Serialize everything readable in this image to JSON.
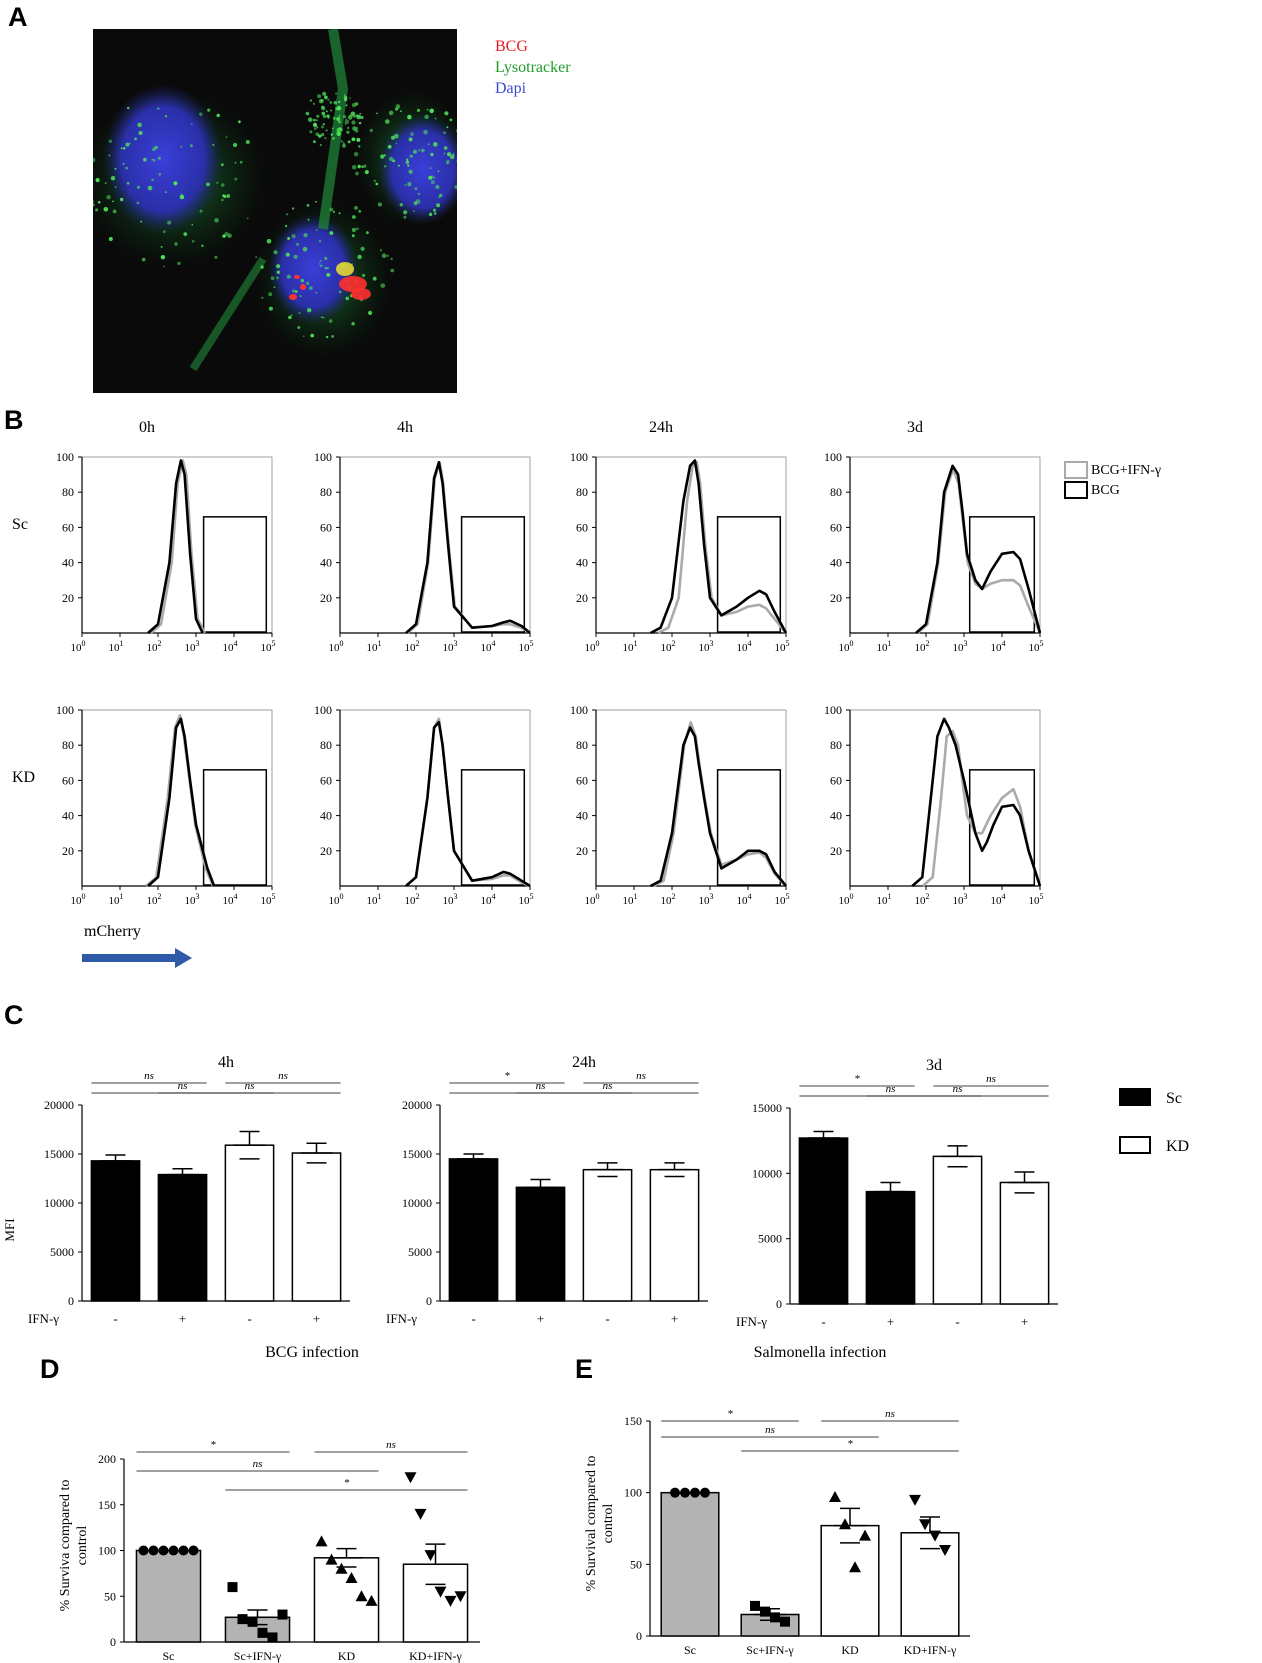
{
  "panels": {
    "A": {
      "letter": "A",
      "legend": [
        {
          "label": "BCG",
          "color": "#e8191f"
        },
        {
          "label": "Lysotracker",
          "color": "#1f9b2a"
        },
        {
          "label": "Dapi",
          "color": "#3b4bd0"
        }
      ]
    },
    "B": {
      "letter": "B",
      "timepoints": [
        "0h",
        "4h",
        "24h",
        "3d"
      ],
      "rows": [
        "Sc",
        "KD"
      ],
      "legend": [
        {
          "label": "BCG+IFN-γ",
          "color": "#aaaaaa"
        },
        {
          "label": "BCG",
          "color": "#000000"
        }
      ],
      "y_ticks": [
        "100",
        "80",
        "60",
        "40",
        "20"
      ],
      "x_ticks": [
        {
          "base": "10",
          "exp": "0"
        },
        {
          "base": "10",
          "exp": "1"
        },
        {
          "base": "10",
          "exp": "2"
        },
        {
          "base": "10",
          "exp": "3"
        },
        {
          "base": "10",
          "exp": "4"
        },
        {
          "base": "10",
          "exp": "5"
        }
      ],
      "x_label": "mCherry",
      "arrow_color": "#2e5aa8"
    },
    "C": {
      "letter": "C",
      "ylabel": "MFI",
      "x_axis_label": "IFN-γ",
      "ifn_labels": [
        "-",
        "+",
        "-",
        "+"
      ],
      "legend": [
        {
          "label": "Sc",
          "fill": "#000000"
        },
        {
          "label": "KD",
          "fill": "#ffffff"
        }
      ]
    },
    "D": {
      "letter": "D"
    },
    "E": {
      "letter": "E"
    }
  },
  "chart_data": [
    {
      "panel": "B",
      "type": "line",
      "subplot": "Sc 0h",
      "x_scale": "log",
      "xlim": [
        1,
        100000
      ],
      "ylim": [
        0,
        100
      ],
      "series": [
        {
          "name": "BCG",
          "x": [
            100,
            200,
            300,
            400,
            500,
            700,
            1000,
            1500
          ],
          "y": [
            5,
            40,
            85,
            98,
            90,
            45,
            8,
            0
          ]
        },
        {
          "name": "BCG+IFN-γ",
          "x": [
            120,
            230,
            330,
            450,
            560,
            760,
            1100,
            1700
          ],
          "y": [
            5,
            40,
            85,
            98,
            90,
            45,
            8,
            0
          ]
        }
      ]
    },
    {
      "panel": "B",
      "type": "line",
      "subplot": "Sc 4h",
      "x_scale": "log",
      "xlim": [
        1,
        100000
      ],
      "ylim": [
        0,
        100
      ],
      "series": [
        {
          "name": "BCG",
          "x": [
            100,
            200,
            300,
            400,
            500,
            700,
            1000,
            3000,
            10000,
            20000,
            30000,
            60000,
            100000
          ],
          "y": [
            5,
            40,
            88,
            97,
            85,
            50,
            15,
            3,
            4,
            6,
            7,
            4,
            0
          ]
        },
        {
          "name": "BCG+IFN-γ",
          "x": [
            110,
            210,
            310,
            420,
            520,
            720,
            1050,
            3000,
            10000,
            20000,
            30000,
            60000,
            100000
          ],
          "y": [
            5,
            40,
            88,
            97,
            85,
            50,
            15,
            3,
            4,
            5,
            5,
            3,
            0
          ]
        }
      ]
    },
    {
      "panel": "B",
      "type": "line",
      "subplot": "Sc 24h",
      "x_scale": "log",
      "xlim": [
        1,
        100000
      ],
      "ylim": [
        0,
        100
      ],
      "series": [
        {
          "name": "BCG",
          "x": [
            50,
            100,
            200,
            300,
            400,
            500,
            700,
            1000,
            2000,
            5000,
            10000,
            20000,
            30000,
            50000,
            100000
          ],
          "y": [
            3,
            20,
            75,
            95,
            98,
            85,
            50,
            20,
            10,
            15,
            20,
            24,
            22,
            12,
            0
          ]
        },
        {
          "name": "BCG+IFN-γ",
          "x": [
            80,
            150,
            250,
            350,
            450,
            550,
            750,
            1100,
            2000,
            5000,
            10000,
            20000,
            30000,
            50000,
            100000
          ],
          "y": [
            3,
            20,
            75,
            95,
            97,
            85,
            50,
            20,
            10,
            12,
            15,
            16,
            14,
            8,
            0
          ]
        }
      ]
    },
    {
      "panel": "B",
      "type": "line",
      "subplot": "Sc 3d",
      "x_scale": "log",
      "xlim": [
        1,
        100000
      ],
      "ylim": [
        0,
        100
      ],
      "series": [
        {
          "name": "BCG",
          "x": [
            100,
            200,
            300,
            500,
            700,
            900,
            1200,
            2000,
            3000,
            5000,
            10000,
            20000,
            30000,
            50000,
            100000
          ],
          "y": [
            5,
            40,
            80,
            95,
            90,
            70,
            45,
            30,
            25,
            35,
            45,
            46,
            42,
            25,
            0
          ]
        },
        {
          "name": "BCG+IFN-γ",
          "x": [
            110,
            210,
            320,
            520,
            720,
            920,
            1250,
            2000,
            3000,
            5000,
            10000,
            20000,
            30000,
            50000,
            100000
          ],
          "y": [
            5,
            40,
            80,
            93,
            85,
            65,
            40,
            28,
            25,
            28,
            30,
            30,
            27,
            15,
            0
          ]
        }
      ]
    },
    {
      "panel": "B",
      "type": "line",
      "subplot": "KD 0h",
      "x_scale": "log",
      "xlim": [
        1,
        100000
      ],
      "ylim": [
        0,
        100
      ],
      "series": [
        {
          "name": "BCG",
          "x": [
            100,
            200,
            300,
            400,
            500,
            700,
            1000,
            2000,
            3000
          ],
          "y": [
            5,
            50,
            90,
            95,
            85,
            60,
            35,
            10,
            0
          ]
        },
        {
          "name": "BCG+IFN-γ",
          "x": [
            90,
            180,
            280,
            380,
            480,
            680,
            950,
            1800,
            2800
          ],
          "y": [
            5,
            50,
            90,
            97,
            85,
            60,
            35,
            10,
            0
          ]
        }
      ]
    },
    {
      "panel": "B",
      "type": "line",
      "subplot": "KD 4h",
      "x_scale": "log",
      "xlim": [
        1,
        100000
      ],
      "ylim": [
        0,
        100
      ],
      "series": [
        {
          "name": "BCG",
          "x": [
            100,
            200,
            300,
            400,
            500,
            700,
            1000,
            3000,
            10000,
            20000,
            30000,
            60000,
            100000
          ],
          "y": [
            5,
            50,
            90,
            93,
            80,
            50,
            20,
            3,
            5,
            8,
            7,
            3,
            0
          ]
        },
        {
          "name": "BCG+IFN-γ",
          "x": [
            100,
            200,
            300,
            400,
            500,
            700,
            1000,
            3000,
            10000,
            20000,
            30000,
            60000,
            100000
          ],
          "y": [
            5,
            50,
            90,
            95,
            80,
            50,
            20,
            3,
            4,
            6,
            6,
            2,
            0
          ]
        }
      ]
    },
    {
      "panel": "B",
      "type": "line",
      "subplot": "KD 24h",
      "x_scale": "log",
      "xlim": [
        1,
        100000
      ],
      "ylim": [
        0,
        100
      ],
      "series": [
        {
          "name": "BCG",
          "x": [
            50,
            100,
            200,
            300,
            400,
            500,
            700,
            1000,
            2000,
            5000,
            10000,
            20000,
            30000,
            50000,
            100000
          ],
          "y": [
            3,
            30,
            80,
            90,
            85,
            70,
            50,
            30,
            10,
            15,
            20,
            20,
            18,
            8,
            0
          ]
        },
        {
          "name": "BCG+IFN-γ",
          "x": [
            60,
            110,
            210,
            310,
            420,
            520,
            720,
            1050,
            2000,
            5000,
            10000,
            20000,
            30000,
            50000,
            100000
          ],
          "y": [
            3,
            30,
            80,
            93,
            85,
            70,
            50,
            30,
            12,
            15,
            18,
            19,
            16,
            7,
            0
          ]
        }
      ]
    },
    {
      "panel": "B",
      "type": "line",
      "subplot": "KD 3d",
      "x_scale": "log",
      "xlim": [
        1,
        100000
      ],
      "ylim": [
        0,
        100
      ],
      "series": [
        {
          "name": "BCG",
          "x": [
            80,
            150,
            200,
            300,
            400,
            600,
            1000,
            2000,
            3000,
            4000,
            6000,
            10000,
            20000,
            30000,
            50000,
            100000
          ],
          "y": [
            5,
            60,
            85,
            95,
            90,
            80,
            60,
            30,
            20,
            25,
            35,
            45,
            46,
            40,
            20,
            0
          ]
        },
        {
          "name": "BCG+IFN-γ",
          "x": [
            150,
            250,
            350,
            500,
            700,
            900,
            1200,
            2000,
            3000,
            5000,
            10000,
            20000,
            30000,
            50000,
            100000
          ],
          "y": [
            5,
            50,
            85,
            88,
            80,
            60,
            40,
            30,
            30,
            40,
            50,
            55,
            45,
            20,
            0
          ]
        }
      ]
    },
    {
      "panel": "C",
      "type": "bar",
      "title": "4h",
      "ylabel": "MFI",
      "categories": [
        "Sc -",
        "Sc +",
        "KD -",
        "KD +"
      ],
      "values": [
        14300,
        12900,
        15900,
        15100
      ],
      "errors": [
        600,
        600,
        1400,
        1000
      ],
      "ylim": [
        0,
        20000
      ],
      "yticks": [
        "0",
        "5000",
        "10000",
        "15000",
        "20000"
      ],
      "significance": [
        {
          "from": 0,
          "to": 1,
          "label": "ns"
        },
        {
          "from": 0,
          "to": 2,
          "label": "ns"
        },
        {
          "from": 2,
          "to": 3,
          "label": "ns"
        },
        {
          "from": 1,
          "to": 3,
          "label": "ns"
        }
      ]
    },
    {
      "panel": "C",
      "type": "bar",
      "title": "24h",
      "categories": [
        "Sc -",
        "Sc +",
        "KD -",
        "KD +"
      ],
      "values": [
        14500,
        11600,
        13400,
        13400
      ],
      "errors": [
        500,
        800,
        700,
        700
      ],
      "ylim": [
        0,
        20000
      ],
      "yticks": [
        "0",
        "5000",
        "10000",
        "15000",
        "20000"
      ],
      "significance": [
        {
          "from": 0,
          "to": 1,
          "label": "*"
        },
        {
          "from": 0,
          "to": 2,
          "label": "ns"
        },
        {
          "from": 2,
          "to": 3,
          "label": "ns"
        },
        {
          "from": 1,
          "to": 3,
          "label": "ns"
        }
      ]
    },
    {
      "panel": "C",
      "type": "bar",
      "title": "3d",
      "categories": [
        "Sc -",
        "Sc +",
        "KD -",
        "KD +"
      ],
      "values": [
        12700,
        8600,
        11300,
        9300
      ],
      "errors": [
        500,
        700,
        800,
        800
      ],
      "ylim": [
        0,
        15000
      ],
      "yticks": [
        "0",
        "5000",
        "10000",
        "15000"
      ],
      "significance": [
        {
          "from": 0,
          "to": 1,
          "label": "*"
        },
        {
          "from": 0,
          "to": 2,
          "label": "ns"
        },
        {
          "from": 2,
          "to": 3,
          "label": "ns"
        },
        {
          "from": 1,
          "to": 3,
          "label": "ns"
        }
      ]
    },
    {
      "panel": "D",
      "type": "bar",
      "title": "BCG infection",
      "ylabel": "% Surviva compared to control",
      "categories": [
        "Sc",
        "Sc+IFN-γ",
        "KD",
        "KD+IFN-γ"
      ],
      "values": [
        100,
        27,
        92,
        85
      ],
      "errors": [
        0,
        8,
        10,
        22
      ],
      "bar_fills": [
        "#b3b3b3",
        "#b3b3b3",
        "#ffffff",
        "#ffffff"
      ],
      "markers": [
        "circle",
        "square",
        "triangle-up",
        "triangle-down"
      ],
      "points": [
        [
          100,
          100,
          100,
          100,
          100,
          100
        ],
        [
          60,
          25,
          22,
          10,
          5,
          30
        ],
        [
          110,
          90,
          80,
          70,
          50,
          45
        ],
        [
          180,
          140,
          95,
          55,
          45,
          50
        ]
      ],
      "ylim": [
        0,
        200
      ],
      "yticks": [
        "0",
        "50",
        "100",
        "150",
        "200"
      ],
      "significance": [
        {
          "from": 0,
          "to": 1,
          "label": "*"
        },
        {
          "from": 0,
          "to": 2,
          "label": "ns"
        },
        {
          "from": 2,
          "to": 3,
          "label": "ns"
        },
        {
          "from": 1,
          "to": 3,
          "label": "*"
        }
      ]
    },
    {
      "panel": "E",
      "type": "bar",
      "title": "Salmonella infection",
      "ylabel": "% Survival compared to control",
      "categories": [
        "Sc",
        "Sc+IFN-γ",
        "KD",
        "KD+IFN-γ"
      ],
      "values": [
        100,
        15,
        77,
        72
      ],
      "errors": [
        0,
        4,
        12,
        11
      ],
      "bar_fills": [
        "#b3b3b3",
        "#b3b3b3",
        "#ffffff",
        "#ffffff"
      ],
      "markers": [
        "circle",
        "square",
        "triangle-up",
        "triangle-down"
      ],
      "points": [
        [
          100,
          100,
          100,
          100
        ],
        [
          21,
          17,
          13,
          10
        ],
        [
          97,
          78,
          48,
          70
        ],
        [
          95,
          78,
          70,
          60
        ]
      ],
      "ylim": [
        0,
        150
      ],
      "yticks": [
        "0",
        "50",
        "100",
        "150"
      ],
      "significance": [
        {
          "from": 0,
          "to": 1,
          "label": "*"
        },
        {
          "from": 0,
          "to": 2,
          "label": "ns"
        },
        {
          "from": 2,
          "to": 3,
          "label": "ns"
        },
        {
          "from": 1,
          "to": 3,
          "label": "*"
        }
      ]
    }
  ]
}
